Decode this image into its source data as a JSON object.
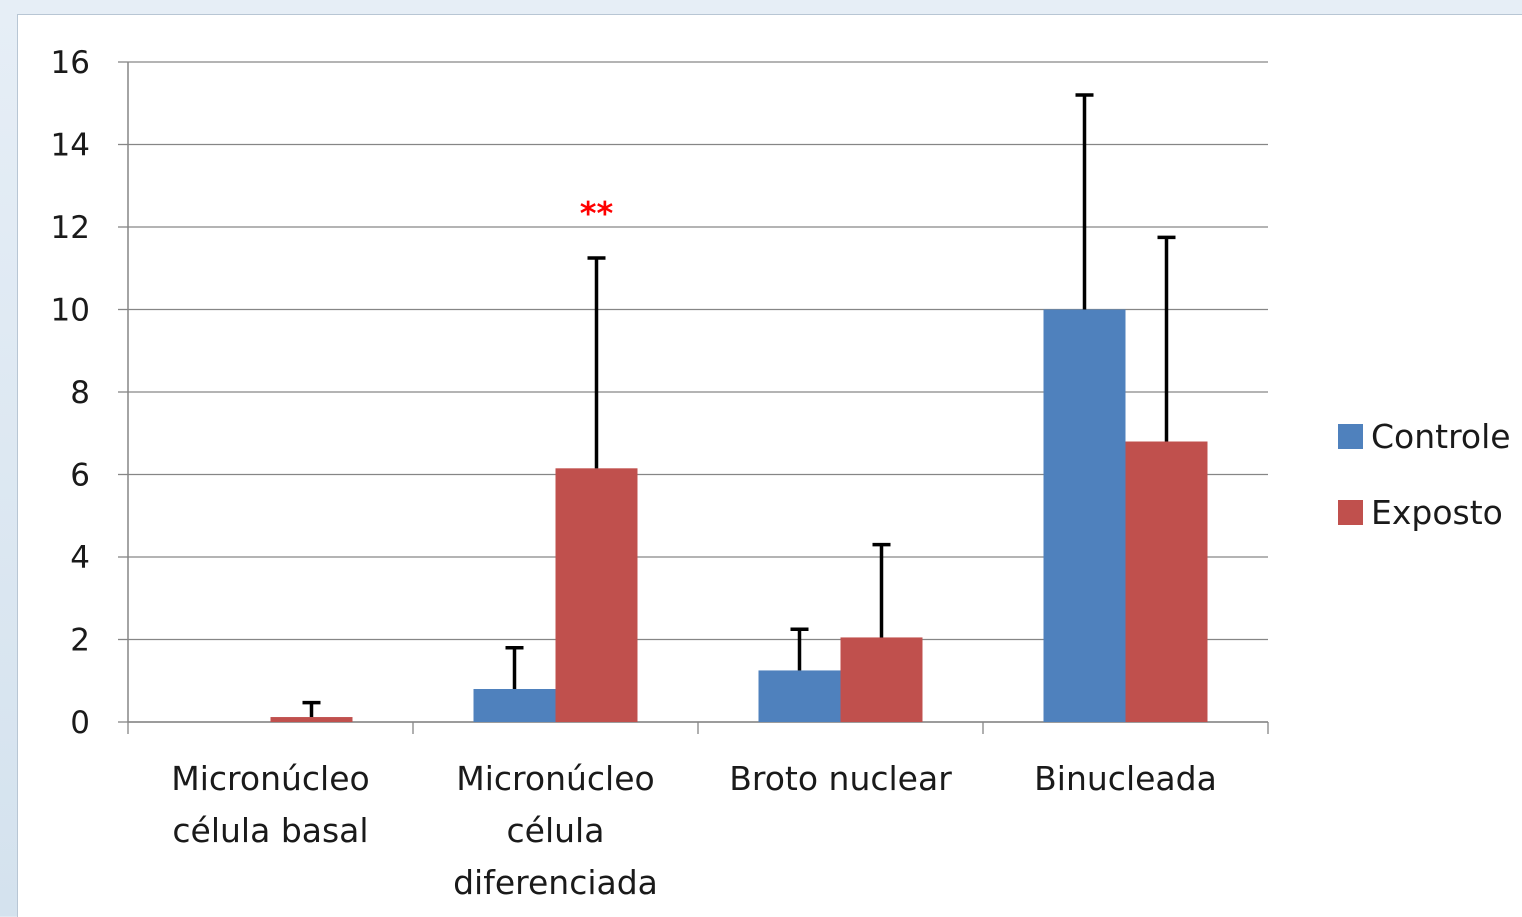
{
  "chart_data": {
    "type": "bar",
    "title": "",
    "xlabel": "",
    "ylabel": "",
    "ylim": [
      0,
      16
    ],
    "yticks": [
      0,
      2,
      4,
      6,
      8,
      10,
      12,
      14,
      16
    ],
    "grid": true,
    "legend_position": "right",
    "categories": [
      [
        "Micronúcleo",
        "célula basal"
      ],
      [
        "Micronúcleo",
        "célula",
        "diferenciada"
      ],
      [
        "Broto nuclear"
      ],
      [
        "Binucleada"
      ]
    ],
    "series": [
      {
        "name": "Controle",
        "color": "#4f81bd",
        "values": [
          0,
          0.8,
          1.25,
          10
        ],
        "error": [
          0,
          1.0,
          1.0,
          5.2
        ]
      },
      {
        "name": "Exposto",
        "color": "#c0504d",
        "values": [
          0.12,
          6.15,
          2.05,
          6.8
        ],
        "error": [
          0.35,
          5.1,
          2.25,
          4.95
        ]
      }
    ],
    "annotations": [
      {
        "text": "**",
        "category_index": 1,
        "series_index": 1,
        "value": 12.6
      }
    ]
  }
}
